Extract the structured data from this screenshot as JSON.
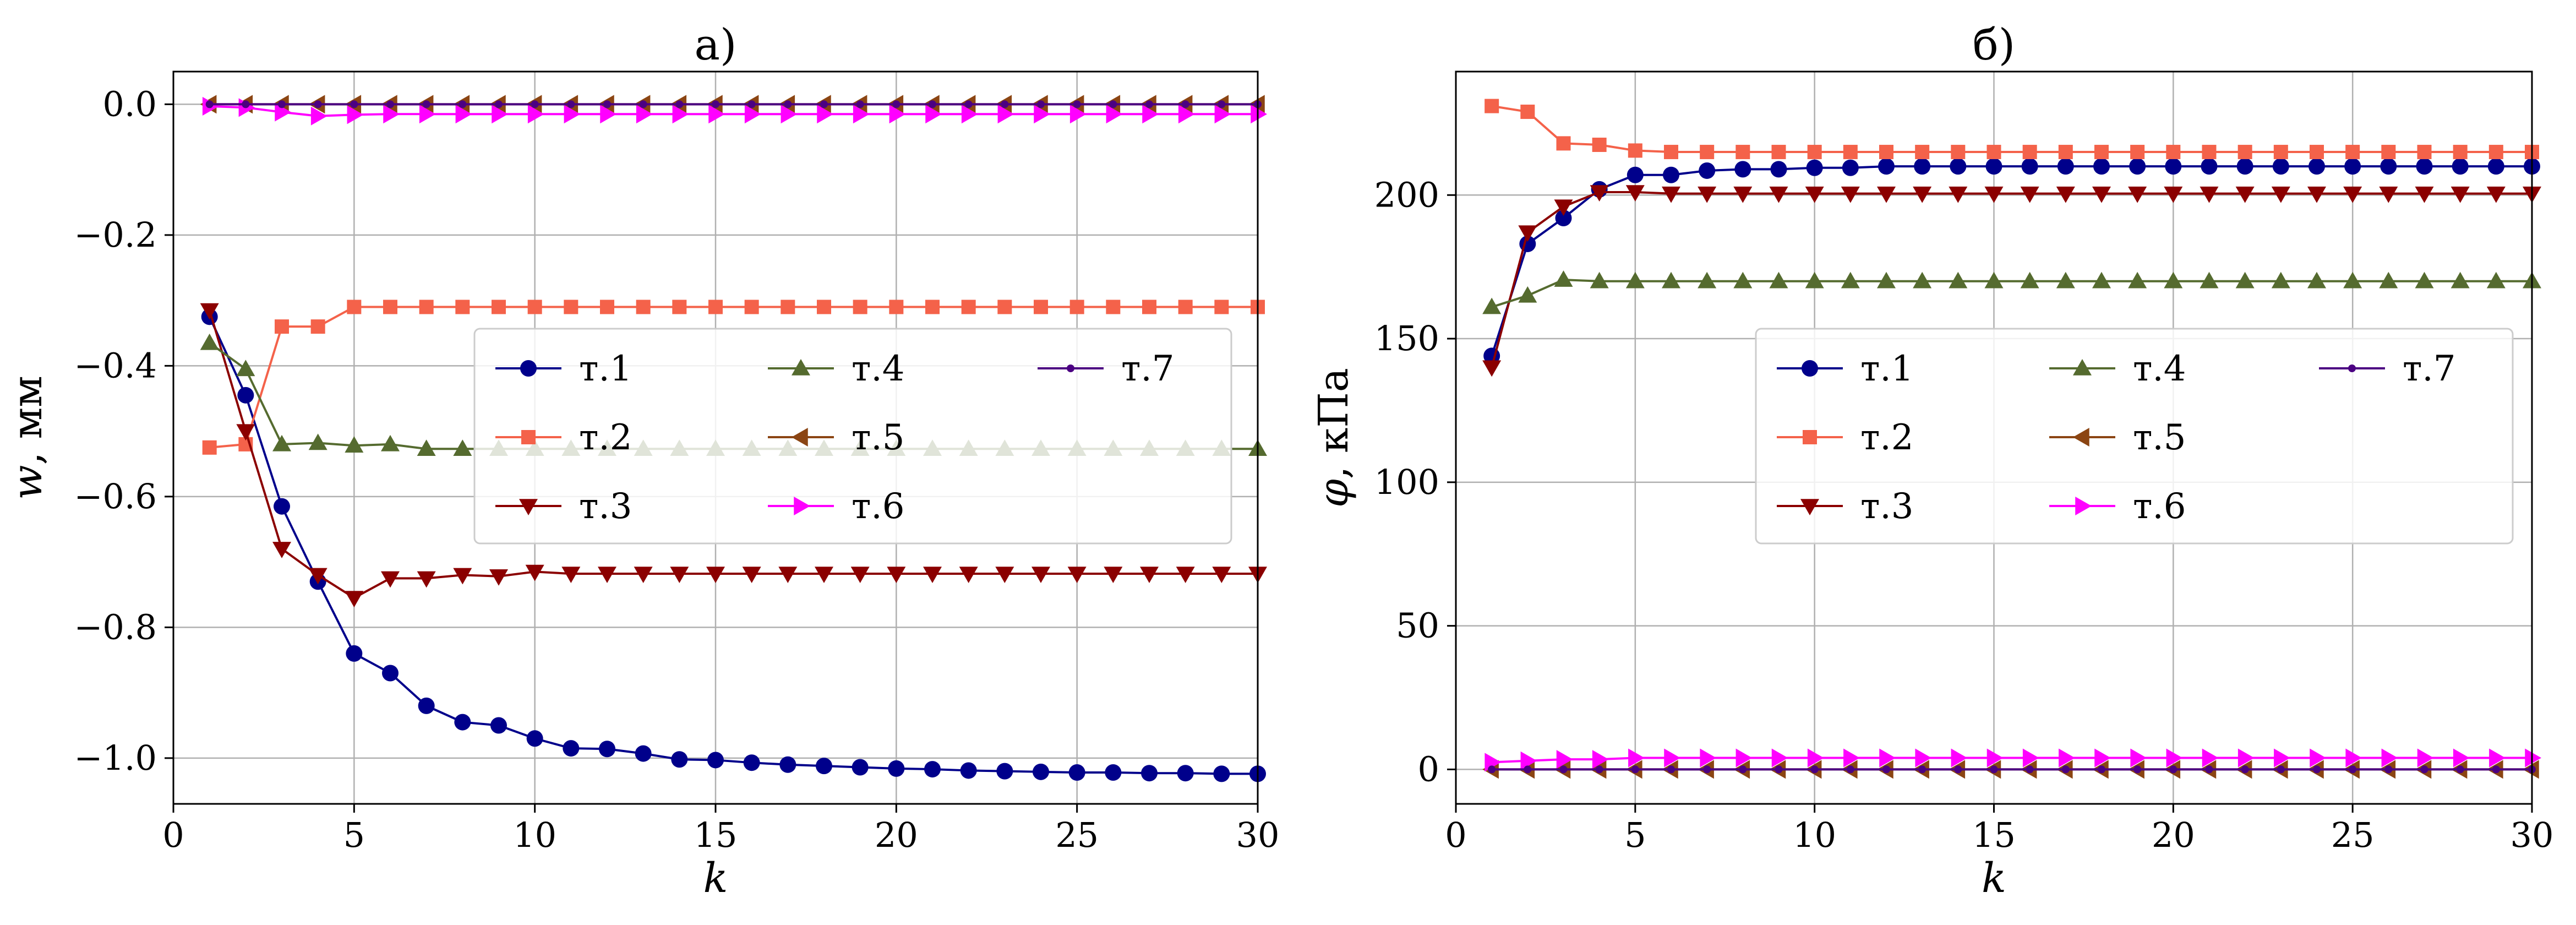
{
  "chart_data": [
    {
      "type": "line",
      "title": "а)",
      "xlabel": "k",
      "ylabel": "w, мм",
      "xlim": [
        0,
        30
      ],
      "ylim": [
        -1.07,
        0.05
      ],
      "xticks": [
        0,
        5,
        10,
        15,
        20,
        25,
        30
      ],
      "xtick_labels": [
        "0",
        "5",
        "10",
        "15",
        "20",
        "25",
        "30"
      ],
      "yticks": [
        0.0,
        -0.2,
        -0.4,
        -0.6,
        -0.8,
        -1.0
      ],
      "ytick_labels": [
        "0.0",
        "−0.2",
        "−0.4",
        "−0.6",
        "−0.8",
        "−1.0"
      ],
      "grid": true,
      "legend_position": "center-right",
      "x": [
        1,
        2,
        3,
        4,
        5,
        6,
        7,
        8,
        9,
        10,
        11,
        12,
        13,
        14,
        15,
        16,
        17,
        18,
        19,
        20,
        21,
        22,
        23,
        24,
        25,
        26,
        27,
        28,
        29,
        30
      ],
      "series": [
        {
          "name": "т.1",
          "color": "#00008b",
          "marker": "circle",
          "values": [
            -0.325,
            -0.445,
            -0.615,
            -0.73,
            -0.84,
            -0.87,
            -0.92,
            -0.945,
            -0.95,
            -0.97,
            -0.985,
            -0.986,
            -0.993,
            -1.002,
            -1.003,
            -1.007,
            -1.01,
            -1.012,
            -1.014,
            -1.016,
            -1.017,
            -1.019,
            -1.02,
            -1.021,
            -1.022,
            -1.022,
            -1.023,
            -1.023,
            -1.024,
            -1.024
          ]
        },
        {
          "name": "т.2",
          "color": "#f4624a",
          "marker": "square",
          "values": [
            -0.525,
            -0.52,
            -0.34,
            -0.34,
            -0.31,
            -0.31,
            -0.31,
            -0.31,
            -0.31,
            -0.31,
            -0.31,
            -0.31,
            -0.31,
            -0.31,
            -0.31,
            -0.31,
            -0.31,
            -0.31,
            -0.31,
            -0.31,
            -0.31,
            -0.31,
            -0.31,
            -0.31,
            -0.31,
            -0.31,
            -0.31,
            -0.31,
            -0.31,
            -0.31
          ]
        },
        {
          "name": "т.3",
          "color": "#8b0000",
          "marker": "triangle-down",
          "values": [
            -0.315,
            -0.5,
            -0.68,
            -0.72,
            -0.755,
            -0.725,
            -0.725,
            -0.72,
            -0.722,
            -0.715,
            -0.718,
            -0.718,
            -0.718,
            -0.718,
            -0.718,
            -0.718,
            -0.718,
            -0.718,
            -0.718,
            -0.718,
            -0.718,
            -0.718,
            -0.718,
            -0.718,
            -0.718,
            -0.718,
            -0.718,
            -0.718,
            -0.718,
            -0.718
          ]
        },
        {
          "name": "т.4",
          "color": "#556b2f",
          "marker": "triangle-up",
          "values": [
            -0.365,
            -0.405,
            -0.52,
            -0.518,
            -0.522,
            -0.52,
            -0.527,
            -0.527,
            -0.527,
            -0.527,
            -0.527,
            -0.527,
            -0.527,
            -0.527,
            -0.527,
            -0.527,
            -0.527,
            -0.527,
            -0.527,
            -0.527,
            -0.527,
            -0.527,
            -0.527,
            -0.527,
            -0.527,
            -0.527,
            -0.527,
            -0.527,
            -0.527,
            -0.527
          ]
        },
        {
          "name": "т.5",
          "color": "#8b4513",
          "marker": "triangle-left",
          "values": [
            0,
            0,
            0,
            0,
            0,
            0,
            0,
            0,
            0,
            0,
            0,
            0,
            0,
            0,
            0,
            0,
            0,
            0,
            0,
            0,
            0,
            0,
            0,
            0,
            0,
            0,
            0,
            0,
            0,
            0
          ]
        },
        {
          "name": "т.6",
          "color": "#ff00ff",
          "marker": "triangle-right",
          "values": [
            -0.003,
            -0.005,
            -0.012,
            -0.018,
            -0.016,
            -0.015,
            -0.015,
            -0.015,
            -0.015,
            -0.015,
            -0.015,
            -0.015,
            -0.015,
            -0.015,
            -0.015,
            -0.015,
            -0.015,
            -0.015,
            -0.015,
            -0.015,
            -0.015,
            -0.015,
            -0.015,
            -0.015,
            -0.015,
            -0.015,
            -0.015,
            -0.015,
            -0.015,
            -0.015
          ]
        },
        {
          "name": "т.7",
          "color": "#4b0082",
          "marker": "dot",
          "values": [
            0,
            0,
            0,
            0,
            0,
            0,
            0,
            0,
            0,
            0,
            0,
            0,
            0,
            0,
            0,
            0,
            0,
            0,
            0,
            0,
            0,
            0,
            0,
            0,
            0,
            0,
            0,
            0,
            0,
            0
          ]
        }
      ]
    },
    {
      "type": "line",
      "title": "б)",
      "xlabel": "k",
      "ylabel": "φ, кПа",
      "xlim": [
        0,
        30
      ],
      "ylim": [
        -12,
        243
      ],
      "xticks": [
        0,
        5,
        10,
        15,
        20,
        25,
        30
      ],
      "xtick_labels": [
        "0",
        "5",
        "10",
        "15",
        "20",
        "25",
        "30"
      ],
      "yticks": [
        0,
        50,
        100,
        150,
        200
      ],
      "ytick_labels": [
        "0",
        "50",
        "100",
        "150",
        "200"
      ],
      "grid": true,
      "legend_position": "center-right",
      "x": [
        1,
        2,
        3,
        4,
        5,
        6,
        7,
        8,
        9,
        10,
        11,
        12,
        13,
        14,
        15,
        16,
        17,
        18,
        19,
        20,
        21,
        22,
        23,
        24,
        25,
        26,
        27,
        28,
        29,
        30
      ],
      "series": [
        {
          "name": "т.1",
          "color": "#00008b",
          "marker": "circle",
          "values": [
            144,
            183,
            192,
            202,
            207,
            207,
            208.5,
            209,
            209,
            209.5,
            209.5,
            210,
            210,
            210,
            210,
            210,
            210,
            210,
            210,
            210,
            210,
            210,
            210,
            210,
            210,
            210,
            210,
            210,
            210,
            210
          ]
        },
        {
          "name": "т.2",
          "color": "#f4624a",
          "marker": "square",
          "values": [
            231,
            229,
            218,
            217.5,
            215.5,
            215,
            215,
            215,
            215,
            215,
            215,
            215,
            215,
            215,
            215,
            215,
            215,
            215,
            215,
            215,
            215,
            215,
            215,
            215,
            215,
            215,
            215,
            215,
            215,
            215
          ]
        },
        {
          "name": "т.3",
          "color": "#8b0000",
          "marker": "triangle-down",
          "values": [
            140,
            187,
            196,
            201,
            201,
            200.5,
            200.5,
            200.5,
            200.5,
            200.5,
            200.5,
            200.5,
            200.5,
            200.5,
            200.5,
            200.5,
            200.5,
            200.5,
            200.5,
            200.5,
            200.5,
            200.5,
            200.5,
            200.5,
            200.5,
            200.5,
            200.5,
            200.5,
            200.5,
            200.5
          ]
        },
        {
          "name": "т.4",
          "color": "#556b2f",
          "marker": "triangle-up",
          "values": [
            161,
            165,
            170.5,
            170,
            170,
            170,
            170,
            170,
            170,
            170,
            170,
            170,
            170,
            170,
            170,
            170,
            170,
            170,
            170,
            170,
            170,
            170,
            170,
            170,
            170,
            170,
            170,
            170,
            170,
            170
          ]
        },
        {
          "name": "т.5",
          "color": "#8b4513",
          "marker": "triangle-left",
          "values": [
            0,
            0,
            0,
            0,
            0,
            0,
            0,
            0,
            0,
            0,
            0,
            0,
            0,
            0,
            0,
            0,
            0,
            0,
            0,
            0,
            0,
            0,
            0,
            0,
            0,
            0,
            0,
            0,
            0,
            0
          ]
        },
        {
          "name": "т.6",
          "color": "#ff00ff",
          "marker": "triangle-right",
          "values": [
            2.5,
            3,
            3.5,
            3.5,
            4,
            4,
            4,
            4,
            4,
            4,
            4,
            4,
            4,
            4,
            4,
            4,
            4,
            4,
            4,
            4,
            4,
            4,
            4,
            4,
            4,
            4,
            4,
            4,
            4,
            4
          ]
        },
        {
          "name": "т.7",
          "color": "#4b0082",
          "marker": "dot",
          "values": [
            0,
            0,
            0,
            0,
            0,
            0,
            0,
            0,
            0,
            0,
            0,
            0,
            0,
            0,
            0,
            0,
            0,
            0,
            0,
            0,
            0,
            0,
            0,
            0,
            0,
            0,
            0,
            0,
            0,
            0
          ]
        }
      ]
    }
  ]
}
